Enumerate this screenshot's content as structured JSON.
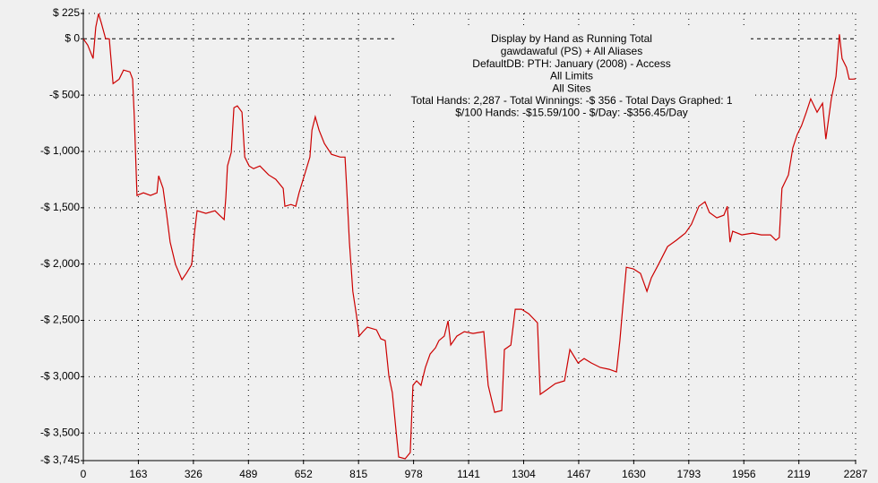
{
  "chart_data": {
    "type": "line",
    "title": "Display by Hand as Running Total",
    "subtitle_lines": [
      "gawdawaful (PS) + All Aliases",
      "DefaultDB: PTH: January (2008) - Access",
      "All Limits",
      "All Sites",
      "Total Hands: 2,287 - Total Winnings: -$ 356 - Total Days Graphed: 1",
      "$/100 Hands: -$15.59/100 - $/Day: -$356.45/Day"
    ],
    "x": [
      0,
      13,
      29,
      37,
      45,
      53,
      66,
      77,
      88,
      106,
      119,
      138,
      146,
      151,
      159,
      178,
      199,
      218,
      223,
      236,
      247,
      257,
      273,
      292,
      305,
      321,
      329,
      337,
      363,
      390,
      403,
      417,
      422,
      427,
      438,
      446,
      456,
      470,
      478,
      491,
      504,
      523,
      536,
      549,
      570,
      592,
      597,
      615,
      629,
      639,
      655,
      671,
      677,
      687,
      698,
      714,
      735,
      761,
      775,
      780,
      788,
      798,
      809,
      817,
      828,
      841,
      868,
      881,
      894,
      905,
      915,
      926,
      934,
      953,
      968,
      976,
      987,
      1000,
      1013,
      1027,
      1043,
      1053,
      1069,
      1080,
      1088,
      1106,
      1128,
      1154,
      1186,
      1199,
      1218,
      1239,
      1247,
      1266,
      1279,
      1298,
      1319,
      1345,
      1353,
      1372,
      1398,
      1425,
      1441,
      1465,
      1483,
      1504,
      1531,
      1557,
      1579,
      1589,
      1597,
      1608,
      1629,
      1650,
      1669,
      1682,
      1703,
      1730,
      1756,
      1783,
      1801,
      1823,
      1841,
      1854,
      1876,
      1897,
      1907,
      1915,
      1923,
      1950,
      1982,
      2008,
      2035,
      2051,
      2061,
      2069,
      2088,
      2101,
      2114,
      2127,
      2141,
      2154,
      2173,
      2189,
      2199,
      2215,
      2229,
      2239,
      2247,
      2260,
      2268,
      2279,
      2287
    ],
    "series": [
      {
        "name": "Running Total",
        "color": "#cc0000",
        "values": [
          0,
          -56,
          -175,
          103,
          223,
          143,
          0,
          0,
          -398,
          -358,
          -278,
          -294,
          -358,
          -692,
          -1391,
          -1368,
          -1391,
          -1368,
          -1217,
          -1328,
          -1566,
          -1805,
          -2004,
          -2139,
          -2083,
          -2004,
          -1725,
          -1527,
          -1550,
          -1527,
          -1566,
          -1606,
          -1407,
          -1129,
          -1010,
          -612,
          -596,
          -652,
          -1050,
          -1129,
          -1153,
          -1129,
          -1169,
          -1209,
          -1248,
          -1328,
          -1487,
          -1471,
          -1487,
          -1368,
          -1209,
          -1050,
          -811,
          -692,
          -811,
          -930,
          -1026,
          -1050,
          -1050,
          -1328,
          -1805,
          -2242,
          -2457,
          -2640,
          -2600,
          -2560,
          -2584,
          -2664,
          -2680,
          -2997,
          -3141,
          -3475,
          -3713,
          -3729,
          -3673,
          -3077,
          -3037,
          -3077,
          -2918,
          -2799,
          -2743,
          -2680,
          -2640,
          -2505,
          -2719,
          -2640,
          -2600,
          -2616,
          -2600,
          -3077,
          -3316,
          -3300,
          -2759,
          -2719,
          -2401,
          -2401,
          -2441,
          -2521,
          -3157,
          -3117,
          -3061,
          -3037,
          -2759,
          -2878,
          -2839,
          -2878,
          -2918,
          -2934,
          -2958,
          -2680,
          -2401,
          -2028,
          -2043,
          -2083,
          -2242,
          -2123,
          -2004,
          -1845,
          -1789,
          -1725,
          -1646,
          -1487,
          -1447,
          -1542,
          -1590,
          -1566,
          -1487,
          -1805,
          -1709,
          -1741,
          -1725,
          -1741,
          -1741,
          -1789,
          -1765,
          -1328,
          -1209,
          -970,
          -851,
          -771,
          -652,
          -533,
          -652,
          -572,
          -891,
          -533,
          -334,
          40,
          -175,
          -254,
          -358,
          -358,
          -356
        ]
      }
    ],
    "xlim": [
      0,
      2287
    ],
    "xticks": [
      0,
      163,
      326,
      489,
      652,
      815,
      978,
      1141,
      1304,
      1467,
      1630,
      1793,
      1956,
      2119,
      2287
    ],
    "ylim": [
      -3745,
      225
    ],
    "yticks": [
      {
        "value": 225,
        "label": "$ 225"
      },
      {
        "value": 0,
        "label": "$ 0"
      },
      {
        "value": -500,
        "label": "-$ 500"
      },
      {
        "value": -1000,
        "label": "-$ 1,000"
      },
      {
        "value": -1500,
        "label": "-$ 1,500"
      },
      {
        "value": -2000,
        "label": "-$ 2,000"
      },
      {
        "value": -2500,
        "label": "-$ 2,500"
      },
      {
        "value": -3000,
        "label": "-$ 3,000"
      },
      {
        "value": -3500,
        "label": "-$ 3,500"
      },
      {
        "value": -3745,
        "label": "-$ 3,745"
      }
    ],
    "grid": true
  }
}
